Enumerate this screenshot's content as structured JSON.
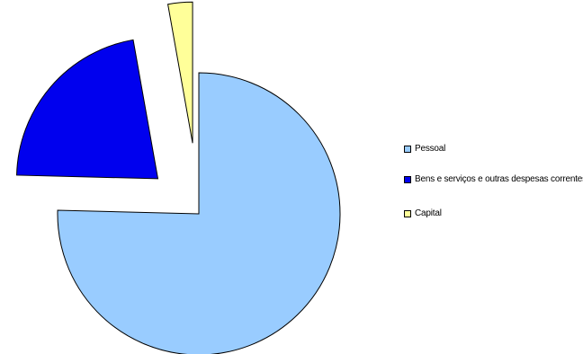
{
  "chart_data": {
    "type": "pie",
    "title": "",
    "labels": [
      "Pessoal",
      "Bens e serviços e outras despesas correntes",
      "Capital"
    ],
    "values": [
      75.4,
      21.8,
      2.8
    ],
    "colors": [
      "#99ccff",
      "#0000ee",
      "#ffff99"
    ],
    "exploded": [
      false,
      true,
      true
    ],
    "legend_position": "right"
  }
}
